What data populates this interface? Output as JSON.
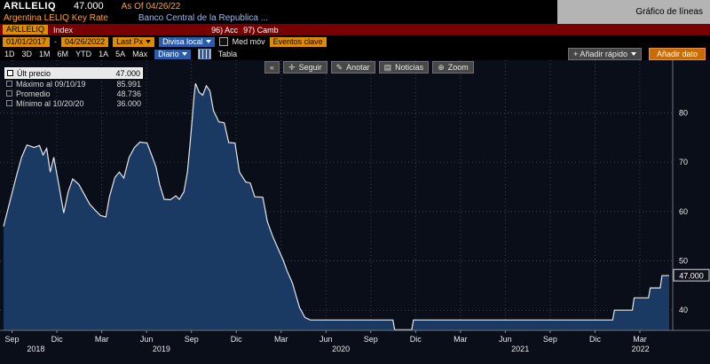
{
  "header": {
    "ticker": "ARLLELIQ",
    "last_price": "47.000",
    "as_of": "As Of 04/26/22",
    "security_name": "Argentina LELIQ Key Rate",
    "issuer": "Banco Central de la Republica ...",
    "function_title": "Gráfico de líneas"
  },
  "menubar": {
    "ticker_field": "ARLLELIQ",
    "ticker_type": "Index",
    "items": [
      "96) Acc",
      "97) Camb"
    ]
  },
  "settings": {
    "date_from": "01/01/2017",
    "separator": "-",
    "date_to": "04/26/2022",
    "price_type": "Last Px",
    "currency": "Divisa local",
    "mov_avg": "Med móv",
    "key_events": "Eventos clave"
  },
  "toolbar": {
    "ranges": [
      "1D",
      "3D",
      "1M",
      "6M",
      "YTD",
      "1A",
      "5A",
      "Máx"
    ],
    "period": "Diario",
    "table_label": "Tabla",
    "collapse": "«",
    "actions": [
      {
        "icon": "✛",
        "label": "Seguir"
      },
      {
        "icon": "✎",
        "label": "Anotar"
      },
      {
        "icon": "▤",
        "label": "Noticias"
      },
      {
        "icon": "⊕",
        "label": "Zoom"
      }
    ],
    "add_quick": "+ Añadir rápido",
    "add_data": "Añadir dato"
  },
  "legend": {
    "rows": [
      {
        "label": "Últ precio",
        "value": "47.000"
      },
      {
        "label": "Máximo al 09/10/19",
        "value": "85.991"
      },
      {
        "label": "Promedio",
        "value": "48.736"
      },
      {
        "label": "Mínimo al 10/20/20",
        "value": "36.000"
      }
    ]
  },
  "chart_data": {
    "type": "area",
    "title": "Argentina LELIQ Key Rate (ARLLELIQ Index)",
    "x_unit": "decimal_year",
    "xlim": [
      2018.6,
      2022.35
    ],
    "ylim": [
      35.9,
      90.7
    ],
    "yticks": [
      40,
      50,
      60,
      70,
      80
    ],
    "xticks": [
      {
        "t": 2018.667,
        "label": "Sep"
      },
      {
        "t": 2018.917,
        "label": "Dic"
      },
      {
        "t": 2019.167,
        "label": "Mar"
      },
      {
        "t": 2019.417,
        "label": "Jun"
      },
      {
        "t": 2019.667,
        "label": "Sep"
      },
      {
        "t": 2019.917,
        "label": "Dic"
      },
      {
        "t": 2020.167,
        "label": "Mar"
      },
      {
        "t": 2020.417,
        "label": "Jun"
      },
      {
        "t": 2020.667,
        "label": "Sep"
      },
      {
        "t": 2020.917,
        "label": "Dic"
      },
      {
        "t": 2021.167,
        "label": "Mar"
      },
      {
        "t": 2021.417,
        "label": "Jun"
      },
      {
        "t": 2021.667,
        "label": "Sep"
      },
      {
        "t": 2021.917,
        "label": "Dic"
      },
      {
        "t": 2022.167,
        "label": "Mar"
      }
    ],
    "years": [
      {
        "t": 2018.8,
        "label": "2018"
      },
      {
        "t": 2019.5,
        "label": "2019"
      },
      {
        "t": 2020.5,
        "label": "2020"
      },
      {
        "t": 2021.5,
        "label": "2021"
      },
      {
        "t": 2022.17,
        "label": "2022"
      }
    ],
    "last_value_label": "47.000",
    "stats": {
      "last": 47.0,
      "max": 85.991,
      "max_date": "09/10/19",
      "avg": 48.736,
      "min": 36.0,
      "min_date": "10/20/20"
    },
    "colors": {
      "bg": "#0a0e18",
      "fill": "#1b3a63",
      "line": "#e4e7ea",
      "grid": "#39414f",
      "axis_text": "#e8e8e8"
    },
    "series": [
      {
        "name": "Últ precio (ARLLELIQ)",
        "points": [
          [
            2018.62,
            57
          ],
          [
            2018.655,
            62
          ],
          [
            2018.69,
            67
          ],
          [
            2018.72,
            71
          ],
          [
            2018.75,
            73.5
          ],
          [
            2018.79,
            73
          ],
          [
            2018.82,
            73.4
          ],
          [
            2018.84,
            71.5
          ],
          [
            2018.86,
            72.8
          ],
          [
            2018.88,
            68
          ],
          [
            2018.9,
            71
          ],
          [
            2018.93,
            65
          ],
          [
            2018.955,
            59.7
          ],
          [
            2018.98,
            64
          ],
          [
            2019.005,
            66.6
          ],
          [
            2019.04,
            65.5
          ],
          [
            2019.07,
            63.5
          ],
          [
            2019.1,
            61.5
          ],
          [
            2019.13,
            60.3
          ],
          [
            2019.16,
            59.2
          ],
          [
            2019.19,
            58.9
          ],
          [
            2019.21,
            63
          ],
          [
            2019.24,
            66.9
          ],
          [
            2019.265,
            68
          ],
          [
            2019.29,
            66.8
          ],
          [
            2019.32,
            71
          ],
          [
            2019.35,
            73
          ],
          [
            2019.38,
            74.1
          ],
          [
            2019.42,
            73.9
          ],
          [
            2019.445,
            71.5
          ],
          [
            2019.47,
            69
          ],
          [
            2019.49,
            65.5
          ],
          [
            2019.515,
            62.5
          ],
          [
            2019.55,
            62.4
          ],
          [
            2019.58,
            63.2
          ],
          [
            2019.6,
            62.5
          ],
          [
            2019.625,
            64
          ],
          [
            2019.645,
            68
          ],
          [
            2019.66,
            74
          ],
          [
            2019.672,
            79
          ],
          [
            2019.682,
            83.5
          ],
          [
            2019.69,
            85.991
          ],
          [
            2019.71,
            84.2
          ],
          [
            2019.73,
            83.6
          ],
          [
            2019.75,
            85.5
          ],
          [
            2019.77,
            84.5
          ],
          [
            2019.79,
            80.5
          ],
          [
            2019.82,
            78.2
          ],
          [
            2019.85,
            78
          ],
          [
            2019.875,
            74
          ],
          [
            2019.91,
            73.9
          ],
          [
            2019.935,
            68
          ],
          [
            2019.97,
            66
          ],
          [
            2019.995,
            65.8
          ],
          [
            2020.02,
            63
          ],
          [
            2020.065,
            62.9
          ],
          [
            2020.09,
            58
          ],
          [
            2020.12,
            55
          ],
          [
            2020.15,
            52.5
          ],
          [
            2020.18,
            50
          ],
          [
            2020.2,
            48
          ],
          [
            2020.23,
            45.5
          ],
          [
            2020.25,
            43
          ],
          [
            2020.27,
            40.5
          ],
          [
            2020.3,
            38.5
          ],
          [
            2020.33,
            38
          ],
          [
            2020.79,
            38
          ],
          [
            2020.8,
            36
          ],
          [
            2020.895,
            36
          ],
          [
            2020.905,
            38
          ],
          [
            2022.015,
            38
          ],
          [
            2022.025,
            40
          ],
          [
            2022.125,
            40
          ],
          [
            2022.135,
            42.5
          ],
          [
            2022.215,
            42.5
          ],
          [
            2022.225,
            44.5
          ],
          [
            2022.28,
            44.5
          ],
          [
            2022.29,
            47
          ],
          [
            2022.33,
            47
          ]
        ]
      }
    ]
  }
}
